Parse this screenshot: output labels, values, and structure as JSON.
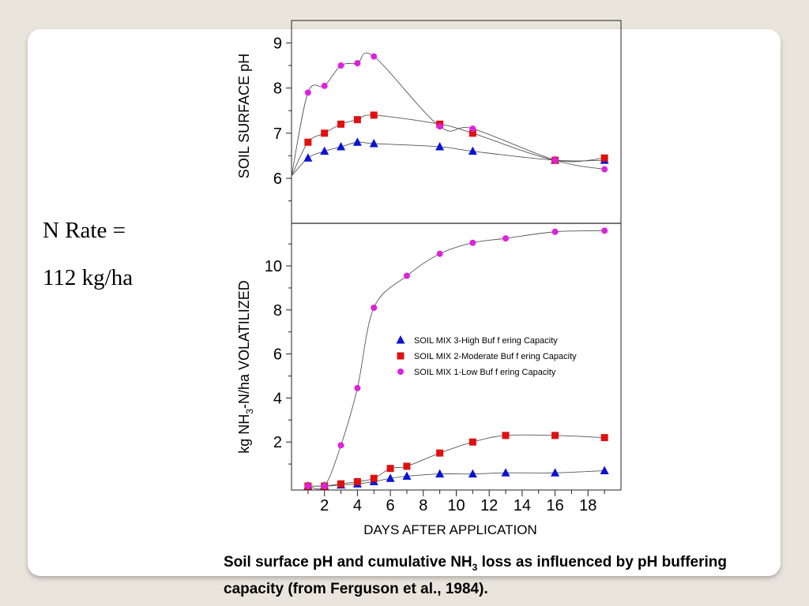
{
  "side_text": {
    "line1": "N Rate =",
    "line2": "112 kg/ha"
  },
  "caption": {
    "part1": "Soil surface pH and cumulative NH",
    "sub": "3",
    "part2": " loss as influenced by pH buffering capacity (from Ferguson et al., 1984)."
  },
  "chart_data": [
    {
      "type": "scatter",
      "ylabel": "SOIL SURFACE pH",
      "xlim": [
        0,
        20
      ],
      "ylim": [
        5,
        9.5
      ],
      "yticks": [
        6,
        7,
        8,
        9
      ],
      "series": [
        {
          "name": "SOIL MIX 3-High Buffering Capacity",
          "marker": "triangle",
          "color": "#0a14d2",
          "x": [
            1,
            2,
            3,
            4,
            5,
            9,
            11,
            16,
            19
          ],
          "y": [
            6.45,
            6.6,
            6.7,
            6.8,
            6.77,
            6.7,
            6.6,
            6.4,
            6.4
          ]
        },
        {
          "name": "SOIL MIX 2-Moderate Buffering Capacity",
          "marker": "square",
          "color": "#e01010",
          "x": [
            1,
            2,
            3,
            4,
            5,
            9,
            11,
            16,
            19
          ],
          "y": [
            6.8,
            7.0,
            7.2,
            7.3,
            7.4,
            7.2,
            7.0,
            6.4,
            6.45
          ]
        },
        {
          "name": "SOIL MIX 1-Low Buffering Capacity",
          "marker": "circle",
          "color": "#dd22dd",
          "x": [
            1,
            2,
            3,
            4,
            5,
            9,
            11,
            16,
            19
          ],
          "y": [
            7.9,
            8.05,
            8.5,
            8.55,
            8.7,
            7.15,
            7.1,
            6.4,
            6.2
          ]
        }
      ]
    },
    {
      "type": "scatter",
      "ylabel_parts": [
        "kg NH",
        "3",
        "-N/ha VOLATILIZED"
      ],
      "xlabel": "DAYS AFTER APPLICATION",
      "xlim": [
        0,
        20
      ],
      "ylim": [
        0,
        12
      ],
      "xticks": [
        2,
        4,
        6,
        8,
        10,
        12,
        14,
        16,
        18
      ],
      "yticks": [
        2,
        4,
        6,
        8,
        10
      ],
      "legend": "center-right",
      "legend_labels": [
        "SOIL MIX 3-High Buf f ering Capacity",
        "SOIL MIX 2-Moderate Buf f ering Capacity",
        "SOIL MIX 1-Low Buf f ering Capacity"
      ],
      "series": [
        {
          "name": "SOIL MIX 3-High Buffering Capacity",
          "marker": "triangle",
          "color": "#0a14d2",
          "x": [
            1,
            2,
            3,
            4,
            5,
            6,
            7,
            9,
            11,
            13,
            16,
            19
          ],
          "y": [
            0,
            0,
            0.05,
            0.1,
            0.2,
            0.35,
            0.45,
            0.55,
            0.55,
            0.6,
            0.6,
            0.7
          ]
        },
        {
          "name": "SOIL MIX 2-Moderate Buffering Capacity",
          "marker": "square",
          "color": "#e01010",
          "x": [
            1,
            2,
            3,
            4,
            5,
            6,
            7,
            9,
            11,
            13,
            16,
            19
          ],
          "y": [
            0,
            0,
            0.1,
            0.2,
            0.35,
            0.8,
            0.9,
            1.5,
            2.0,
            2.3,
            2.3,
            2.2
          ]
        },
        {
          "name": "SOIL MIX 1-Low Buffering Capacity",
          "marker": "circle",
          "color": "#dd22dd",
          "x": [
            1,
            2,
            3,
            4,
            5,
            7,
            9,
            11,
            13,
            16,
            19
          ],
          "y": [
            0,
            0,
            1.85,
            4.45,
            8.1,
            9.55,
            10.55,
            11.05,
            11.25,
            11.55,
            11.6
          ]
        }
      ]
    }
  ]
}
